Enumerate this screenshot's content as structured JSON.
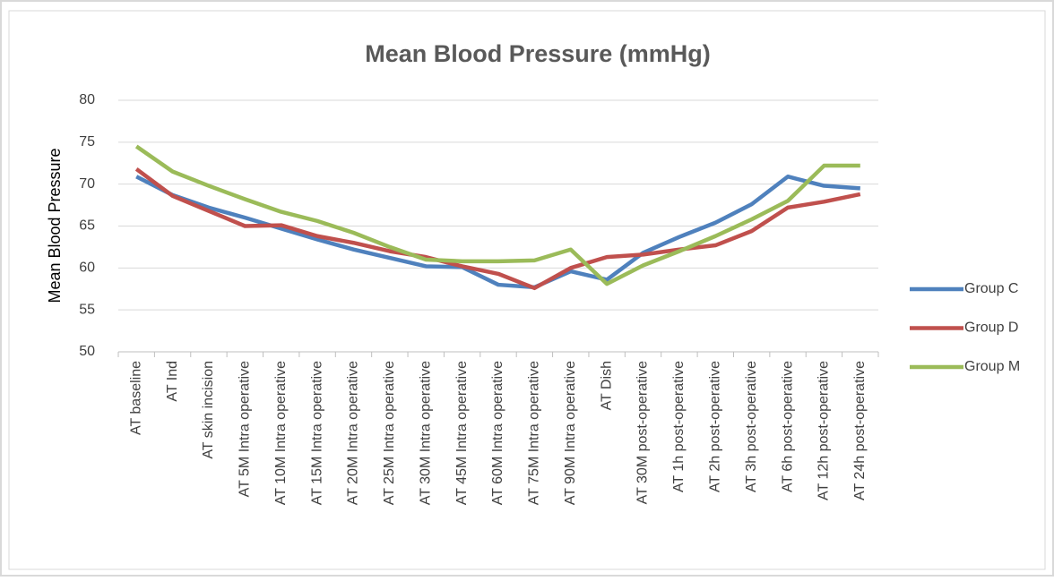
{
  "chart_data": {
    "type": "line",
    "title": "Mean Blood Pressure (mmHg)",
    "y_label": "Mean Blood Pressure",
    "categories": [
      "AT baseline",
      "AT Ind",
      "AT skin incision",
      "AT 5M Intra operative",
      "AT 10M Intra operative",
      "AT 15M Intra operative",
      "AT 20M Intra operative",
      "AT 25M Intra operative",
      "AT 30M Intra operative",
      "AT 45M Intra operative",
      "AT 60M Intra operative",
      "AT 75M Intra operative",
      "AT 90M Intra operative",
      "AT Dish",
      "AT 30M post-operative",
      "AT 1h post-operative",
      "AT 2h post-operative",
      "AT 3h post-operative",
      "AT 6h post-operative",
      "AT 12h post-operative",
      "AT 24h post-operative"
    ],
    "series": [
      {
        "name": "Group C",
        "color": "#4f81bd",
        "values": [
          70.9,
          68.7,
          67.2,
          66,
          64.7,
          63.4,
          62.2,
          61.2,
          60.2,
          60.1,
          58,
          57.7,
          59.6,
          58.6,
          61.8,
          63.7,
          65.4,
          67.6,
          70.9,
          69.8,
          69.5
        ]
      },
      {
        "name": "Group D",
        "color": "#c0504d",
        "values": [
          71.8,
          68.6,
          66.8,
          65,
          65.1,
          63.8,
          63,
          62,
          61.3,
          60.2,
          59.3,
          57.6,
          60,
          61.3,
          61.6,
          62.2,
          62.7,
          64.4,
          67.2,
          67.9,
          68.8
        ]
      },
      {
        "name": "Group M",
        "color": "#9bbb59",
        "values": [
          74.5,
          71.5,
          69.8,
          68.2,
          66.7,
          65.6,
          64.2,
          62.5,
          61,
          60.8,
          60.8,
          60.9,
          62.2,
          58.1,
          60.3,
          62,
          63.8,
          65.8,
          68,
          72.2,
          72.2
        ]
      }
    ],
    "ylim": [
      50,
      80
    ],
    "yticks": [
      50,
      55,
      60,
      65,
      70,
      75,
      80
    ],
    "grid": true,
    "legend": "right"
  }
}
